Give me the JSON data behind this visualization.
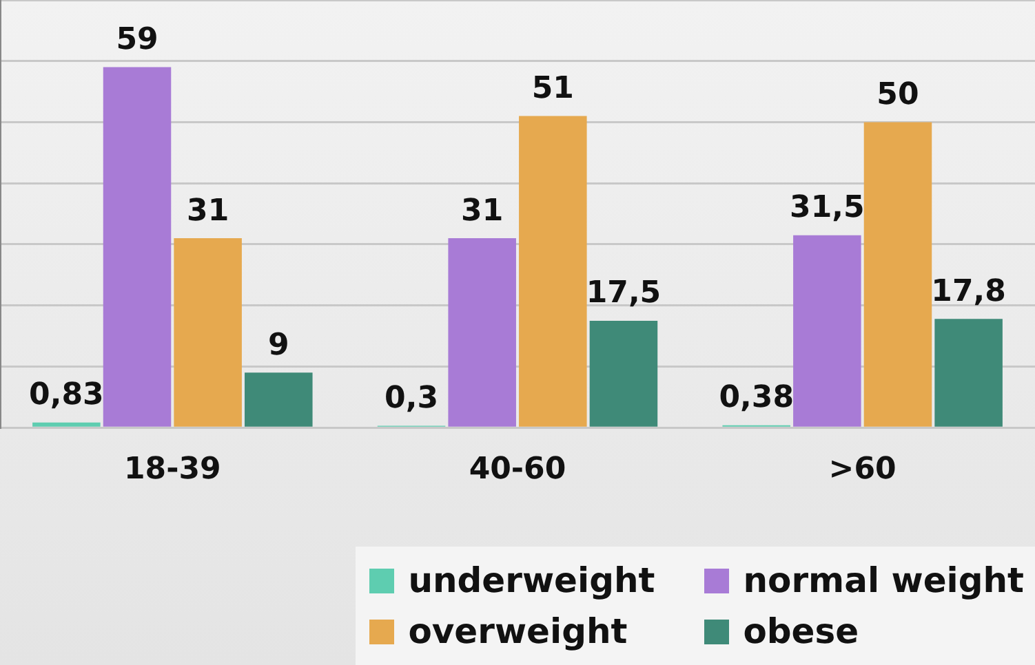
{
  "chart_data": {
    "type": "bar",
    "categories": [
      "18-39",
      "40-60",
      ">60"
    ],
    "series": [
      {
        "name": "underweight",
        "color": "#5ecdb0",
        "values": [
          0.83,
          0.3,
          0.38
        ],
        "value_labels": [
          "0,83",
          "0,3",
          "0,38"
        ]
      },
      {
        "name": "normal weight",
        "color": "#a87bd6",
        "values": [
          59,
          31,
          31.5
        ],
        "value_labels": [
          "59",
          "31",
          "31,5"
        ]
      },
      {
        "name": "overweight",
        "color": "#e6a94f",
        "values": [
          31,
          51,
          50
        ],
        "value_labels": [
          "31",
          "51",
          "50"
        ]
      },
      {
        "name": "obese",
        "color": "#3f8a78",
        "values": [
          9,
          17.5,
          17.8
        ],
        "value_labels": [
          "9",
          "17,5",
          "17,8"
        ]
      }
    ],
    "ylim": [
      0,
      70
    ],
    "yticks": [
      {
        "value": 0,
        "label": null
      },
      {
        "value": 10,
        "label": null
      },
      {
        "value": 20,
        "label": null
      },
      {
        "value": 30,
        "label": null
      },
      {
        "value": 40,
        "label": null
      },
      {
        "value": 50,
        "label": null
      },
      {
        "value": 60,
        "label": null
      },
      {
        "value": 70,
        "label": null
      }
    ],
    "tick_labels": "x",
    "grid": "y",
    "legend": "bottom right"
  }
}
